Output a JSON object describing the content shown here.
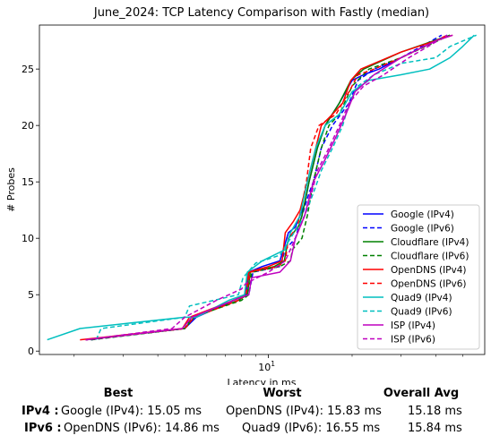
{
  "chart_data": {
    "type": "line",
    "title": "June_2024: TCP Latency Comparison with Fastly (median)",
    "xlabel": "Latency in ms",
    "ylabel": "# Probes",
    "xscale": "log",
    "xlim": [
      1.5,
      60
    ],
    "ylim": [
      -0.3,
      28.9
    ],
    "x_ticks": [
      {
        "value": 10,
        "label": "10^1"
      }
    ],
    "y_ticks": [
      0,
      5,
      10,
      15,
      20,
      25
    ],
    "grid": false,
    "legend": "lower-right",
    "series": [
      {
        "name": "Google (IPv4)",
        "color": "#0000ff",
        "style": "solid",
        "points": [
          [
            2.2,
            1
          ],
          [
            5.0,
            2
          ],
          [
            5.5,
            3
          ],
          [
            7.5,
            4.5
          ],
          [
            8.3,
            5
          ],
          [
            8.5,
            7
          ],
          [
            9.5,
            7.5
          ],
          [
            11,
            8
          ],
          [
            11.8,
            10.5
          ],
          [
            12.5,
            11
          ],
          [
            13.5,
            13
          ],
          [
            14,
            15
          ],
          [
            15,
            18
          ],
          [
            16,
            20
          ],
          [
            18,
            22
          ],
          [
            20,
            24
          ],
          [
            22,
            24.5
          ],
          [
            25,
            25
          ],
          [
            30,
            26
          ],
          [
            40,
            27.5
          ],
          [
            44,
            28
          ]
        ]
      },
      {
        "name": "Google (IPv6)",
        "color": "#0000ff",
        "style": "dashed",
        "points": [
          [
            2.3,
            1
          ],
          [
            5.0,
            2
          ],
          [
            5.3,
            3
          ],
          [
            7.5,
            4.5
          ],
          [
            8.5,
            5
          ],
          [
            8.8,
            7
          ],
          [
            11,
            7.5
          ],
          [
            11.5,
            9
          ],
          [
            12.5,
            10
          ],
          [
            13.2,
            12
          ],
          [
            14,
            14
          ],
          [
            14.5,
            15
          ],
          [
            15.5,
            18
          ],
          [
            17,
            20
          ],
          [
            19.5,
            22
          ],
          [
            21,
            24
          ],
          [
            24,
            25
          ],
          [
            30,
            26
          ],
          [
            42,
            28
          ]
        ]
      },
      {
        "name": "Cloudflare (IPv4)",
        "color": "#008000",
        "style": "solid",
        "points": [
          [
            2.2,
            1
          ],
          [
            5.0,
            2
          ],
          [
            5.4,
            3
          ],
          [
            7.8,
            4.5
          ],
          [
            8.4,
            5
          ],
          [
            8.6,
            7
          ],
          [
            10.5,
            7.5
          ],
          [
            11.4,
            8
          ],
          [
            11.8,
            10
          ],
          [
            12.8,
            11
          ],
          [
            13.2,
            12
          ],
          [
            14,
            15
          ],
          [
            15,
            18
          ],
          [
            16,
            20
          ],
          [
            18,
            22
          ],
          [
            19.8,
            24
          ],
          [
            22,
            25
          ],
          [
            30,
            26.5
          ],
          [
            45,
            28
          ]
        ]
      },
      {
        "name": "Cloudflare (IPv6)",
        "color": "#008000",
        "style": "dashed",
        "points": [
          [
            2.3,
            1
          ],
          [
            5.0,
            2
          ],
          [
            5.3,
            3
          ],
          [
            8.0,
            4.5
          ],
          [
            8.5,
            5
          ],
          [
            8.7,
            7
          ],
          [
            11,
            7.5
          ],
          [
            12,
            8
          ],
          [
            12.2,
            9
          ],
          [
            13.2,
            10
          ],
          [
            13.8,
            12
          ],
          [
            14.5,
            15
          ],
          [
            15.5,
            18
          ],
          [
            16.5,
            20
          ],
          [
            18,
            21
          ],
          [
            20,
            23.5
          ],
          [
            23,
            25
          ],
          [
            30,
            26
          ],
          [
            45,
            28
          ]
        ]
      },
      {
        "name": "OpenDNS (IPv4)",
        "color": "#ff0000",
        "style": "solid",
        "points": [
          [
            2.1,
            1
          ],
          [
            4.9,
            2
          ],
          [
            5.2,
            3
          ],
          [
            7.5,
            4.5
          ],
          [
            8.2,
            5
          ],
          [
            8.5,
            7
          ],
          [
            10,
            7.5
          ],
          [
            11.2,
            8
          ],
          [
            11.5,
            10.5
          ],
          [
            12.3,
            11.5
          ],
          [
            13,
            12.5
          ],
          [
            13.8,
            15
          ],
          [
            14.8,
            18
          ],
          [
            15.5,
            20
          ],
          [
            17,
            21
          ],
          [
            18.5,
            22
          ],
          [
            19.8,
            24
          ],
          [
            21.5,
            25
          ],
          [
            30,
            26.5
          ],
          [
            46,
            28
          ]
        ]
      },
      {
        "name": "OpenDNS (IPv6)",
        "color": "#ff0000",
        "style": "dashed",
        "points": [
          [
            2.2,
            1
          ],
          [
            5.0,
            2
          ],
          [
            5.4,
            3
          ],
          [
            7.8,
            4.5
          ],
          [
            8.3,
            5
          ],
          [
            8.6,
            7
          ],
          [
            10.8,
            7.5
          ],
          [
            11.5,
            8
          ],
          [
            11.8,
            10
          ],
          [
            12.7,
            11
          ],
          [
            13.2,
            13
          ],
          [
            13.7,
            15
          ],
          [
            14.2,
            18
          ],
          [
            15.2,
            20
          ],
          [
            17.5,
            21
          ],
          [
            19.5,
            23
          ],
          [
            21,
            24.5
          ],
          [
            24,
            25
          ],
          [
            30,
            26
          ],
          [
            44,
            28
          ]
        ]
      },
      {
        "name": "Quad9 (IPv4)",
        "color": "#00bfbf",
        "style": "solid",
        "points": [
          [
            1.6,
            1
          ],
          [
            2.1,
            2
          ],
          [
            3.2,
            2.5
          ],
          [
            5.0,
            3
          ],
          [
            5.5,
            3
          ],
          [
            7.2,
            4.5
          ],
          [
            8.2,
            5
          ],
          [
            8.4,
            7
          ],
          [
            9.5,
            8
          ],
          [
            11.5,
            9
          ],
          [
            12,
            10.5
          ],
          [
            13,
            12
          ],
          [
            13.8,
            15
          ],
          [
            14.8,
            18
          ],
          [
            16,
            20
          ],
          [
            18,
            21
          ],
          [
            20,
            23
          ],
          [
            23,
            24
          ],
          [
            30,
            24.5
          ],
          [
            38,
            25
          ],
          [
            45,
            26
          ],
          [
            50,
            27
          ],
          [
            55,
            28
          ]
        ]
      },
      {
        "name": "Quad9 (IPv6)",
        "color": "#00bfbf",
        "style": "dashed",
        "points": [
          [
            2.4,
            1
          ],
          [
            2.5,
            2
          ],
          [
            5.0,
            3
          ],
          [
            5.2,
            4
          ],
          [
            7.8,
            5
          ],
          [
            8.1,
            6.5
          ],
          [
            9,
            7.8
          ],
          [
            11,
            8.5
          ],
          [
            12,
            10
          ],
          [
            13.5,
            12
          ],
          [
            14.5,
            14
          ],
          [
            15.5,
            16
          ],
          [
            17,
            18
          ],
          [
            18.5,
            20
          ],
          [
            19.5,
            22
          ],
          [
            21,
            23.5
          ],
          [
            24,
            24.5
          ],
          [
            30,
            25.5
          ],
          [
            40,
            26
          ],
          [
            45,
            27
          ],
          [
            56,
            28
          ]
        ]
      },
      {
        "name": "ISP (IPv4)",
        "color": "#bf00bf",
        "style": "solid",
        "points": [
          [
            2.2,
            1
          ],
          [
            4.9,
            2
          ],
          [
            5.3,
            3
          ],
          [
            7.5,
            4.5
          ],
          [
            8.5,
            5
          ],
          [
            8.7,
            6.5
          ],
          [
            11,
            7
          ],
          [
            12,
            8
          ],
          [
            12.5,
            10
          ],
          [
            13.5,
            12
          ],
          [
            14.5,
            15
          ],
          [
            16,
            17
          ],
          [
            17.5,
            19
          ],
          [
            19,
            21
          ],
          [
            20.5,
            23
          ],
          [
            24,
            24.5
          ],
          [
            30,
            26
          ],
          [
            40,
            27.5
          ],
          [
            46,
            28
          ]
        ]
      },
      {
        "name": "ISP (IPv6)",
        "color": "#bf00bf",
        "style": "dashed",
        "points": [
          [
            2.2,
            1
          ],
          [
            4.5,
            2
          ],
          [
            5.0,
            3
          ],
          [
            6.5,
            4.5
          ],
          [
            8.0,
            5.5
          ],
          [
            8.3,
            6
          ],
          [
            10,
            7
          ],
          [
            11.5,
            8
          ],
          [
            12.5,
            10
          ],
          [
            13.5,
            12
          ],
          [
            14.3,
            14
          ],
          [
            15,
            16
          ],
          [
            16.5,
            18
          ],
          [
            18,
            20
          ],
          [
            19.5,
            22
          ],
          [
            22,
            23.5
          ],
          [
            26,
            24.5
          ],
          [
            32,
            26
          ],
          [
            44,
            28
          ]
        ]
      }
    ]
  },
  "stats": {
    "headers": {
      "best": "Best",
      "worst": "Worst",
      "avg": "Overall Avg"
    },
    "rows": [
      {
        "label": "IPv4 :",
        "best": "Google (IPv4): 15.05 ms",
        "worst": "OpenDNS (IPv4): 15.83 ms",
        "avg": "15.18 ms"
      },
      {
        "label": "IPv6 :",
        "best": "OpenDNS (IPv6): 14.86 ms",
        "worst": "Quad9 (IPv6): 16.55 ms",
        "avg": "15.84 ms"
      }
    ]
  }
}
